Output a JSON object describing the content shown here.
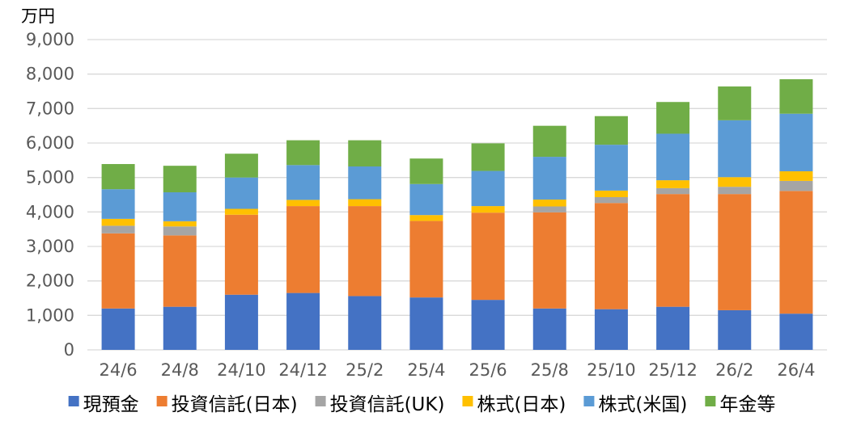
{
  "chart_data": {
    "type": "bar",
    "stacked": true,
    "unit_label": "万円",
    "ylim": [
      0,
      9000
    ],
    "y_ticks": [
      "0",
      "1,000",
      "2,000",
      "3,000",
      "4,000",
      "5,000",
      "6,000",
      "7,000",
      "8,000",
      "9,000"
    ],
    "y_tick_values": [
      0,
      1000,
      2000,
      3000,
      4000,
      5000,
      6000,
      7000,
      8000,
      9000
    ],
    "grid": true,
    "legend_position": "bottom",
    "categories": [
      "24/6",
      "24/8",
      "24/10",
      "24/12",
      "25/2",
      "25/4",
      "25/6",
      "25/8",
      "25/10",
      "25/12",
      "26/2",
      "26/4"
    ],
    "series": [
      {
        "name": "現預金",
        "color": "#4472C4",
        "values": [
          1200,
          1250,
          1600,
          1650,
          1560,
          1520,
          1450,
          1200,
          1180,
          1250,
          1150,
          1050
        ]
      },
      {
        "name": "投資信託(日本)",
        "color": "#ED7D31",
        "values": [
          2180,
          2070,
          2320,
          2520,
          2610,
          2220,
          2530,
          2790,
          3080,
          3270,
          3370,
          3560
        ]
      },
      {
        "name": "投資信託(UK)",
        "color": "#A5A5A5",
        "values": [
          220,
          260,
          0,
          0,
          0,
          0,
          0,
          170,
          170,
          170,
          210,
          290
        ]
      },
      {
        "name": "株式(日本)",
        "color": "#FFC000",
        "values": [
          200,
          150,
          170,
          180,
          200,
          170,
          190,
          200,
          190,
          230,
          280,
          280
        ]
      },
      {
        "name": "株式(米国)",
        "color": "#5B9BD5",
        "values": [
          860,
          840,
          910,
          1010,
          950,
          900,
          1020,
          1240,
          1330,
          1350,
          1650,
          1670
        ]
      },
      {
        "name": "年金等",
        "color": "#70AD47",
        "values": [
          730,
          770,
          690,
          720,
          760,
          740,
          800,
          900,
          830,
          920,
          980,
          1000
        ]
      }
    ]
  }
}
